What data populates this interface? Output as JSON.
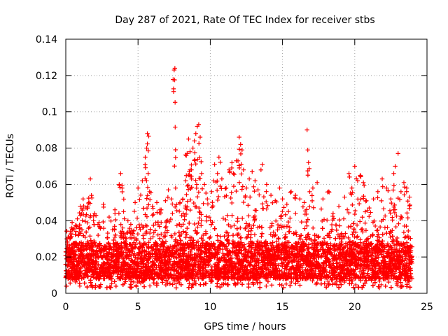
{
  "chart_data": {
    "type": "scatter",
    "title": "Day 287 of 2021, Rate Of TEC Index for receiver stbs",
    "xlabel": "GPS time / hours",
    "ylabel": "ROTI / TECUs",
    "xlim": [
      0,
      25
    ],
    "ylim": [
      0,
      0.14
    ],
    "grid": true,
    "marker": "+",
    "series_color": "#ff0000",
    "x_ticks": [
      0,
      5,
      10,
      15,
      20,
      25
    ],
    "x_tick_labels": [
      "0",
      "5",
      "10",
      "15",
      "20",
      "25"
    ],
    "y_ticks": [
      0,
      0.02,
      0.04,
      0.06,
      0.08,
      0.1,
      0.12,
      0.14
    ],
    "y_tick_labels": [
      "0",
      "0.02",
      "0.04",
      "0.06",
      "0.08",
      "0.1",
      "0.12",
      "0.14"
    ],
    "series": [
      {
        "name": "ROTI",
        "density_profile": {
          "base_low": 0.008,
          "base_high": 0.028,
          "points_per_hour": 380
        },
        "x": [
          0.2,
          0.4,
          0.8,
          1.0,
          1.2,
          1.4,
          1.6,
          1.7,
          2.0,
          2.3,
          2.6,
          3.0,
          3.4,
          3.7,
          3.8,
          3.9,
          4.0,
          4.3,
          4.5,
          4.8,
          5.0,
          5.3,
          5.5,
          5.6,
          5.65,
          5.7,
          5.8,
          6.0,
          6.3,
          6.6,
          6.9,
          7.1,
          7.3,
          7.5,
          7.55,
          7.6,
          7.9,
          8.1,
          8.3,
          8.4,
          8.5,
          8.6,
          8.7,
          8.8,
          8.9,
          9.0,
          9.1,
          9.2,
          9.3,
          9.4,
          9.6,
          9.8,
          10.1,
          10.3,
          10.5,
          10.6,
          10.8,
          11.1,
          11.3,
          11.5,
          11.6,
          11.8,
          12.0,
          12.1,
          12.2,
          12.3,
          12.5,
          12.7,
          12.9,
          13.1,
          13.3,
          13.6,
          13.9,
          14.2,
          14.5,
          14.8,
          15.0,
          15.3,
          15.6,
          15.9,
          16.2,
          16.5,
          16.7,
          16.75,
          16.8,
          17.1,
          17.4,
          17.8,
          18.2,
          18.5,
          18.9,
          19.3,
          19.6,
          19.8,
          20.0,
          20.2,
          20.4,
          20.6,
          20.8,
          21.0,
          21.3,
          21.6,
          21.9,
          22.2,
          22.5,
          22.7,
          22.8,
          23.0,
          23.2,
          23.4,
          23.6,
          23.8
        ],
        "y": [
          0.031,
          0.036,
          0.041,
          0.048,
          0.052,
          0.047,
          0.05,
          0.063,
          0.044,
          0.039,
          0.049,
          0.042,
          0.046,
          0.06,
          0.066,
          0.058,
          0.045,
          0.04,
          0.038,
          0.05,
          0.058,
          0.062,
          0.075,
          0.08,
          0.088,
          0.066,
          0.056,
          0.048,
          0.05,
          0.046,
          0.051,
          0.057,
          0.052,
          0.123,
          0.124,
          0.058,
          0.05,
          0.052,
          0.062,
          0.077,
          0.085,
          0.078,
          0.068,
          0.08,
          0.084,
          0.088,
          0.092,
          0.093,
          0.086,
          0.066,
          0.06,
          0.052,
          0.056,
          0.071,
          0.066,
          0.075,
          0.063,
          0.058,
          0.068,
          0.072,
          0.066,
          0.073,
          0.086,
          0.082,
          0.079,
          0.068,
          0.058,
          0.063,
          0.067,
          0.062,
          0.057,
          0.071,
          0.06,
          0.054,
          0.051,
          0.058,
          0.052,
          0.049,
          0.056,
          0.054,
          0.052,
          0.05,
          0.09,
          0.079,
          0.072,
          0.058,
          0.061,
          0.052,
          0.056,
          0.044,
          0.048,
          0.053,
          0.066,
          0.058,
          0.07,
          0.062,
          0.065,
          0.061,
          0.051,
          0.047,
          0.052,
          0.056,
          0.063,
          0.058,
          0.052,
          0.066,
          0.07,
          0.077,
          0.056,
          0.061,
          0.058,
          0.053
        ]
      }
    ]
  }
}
